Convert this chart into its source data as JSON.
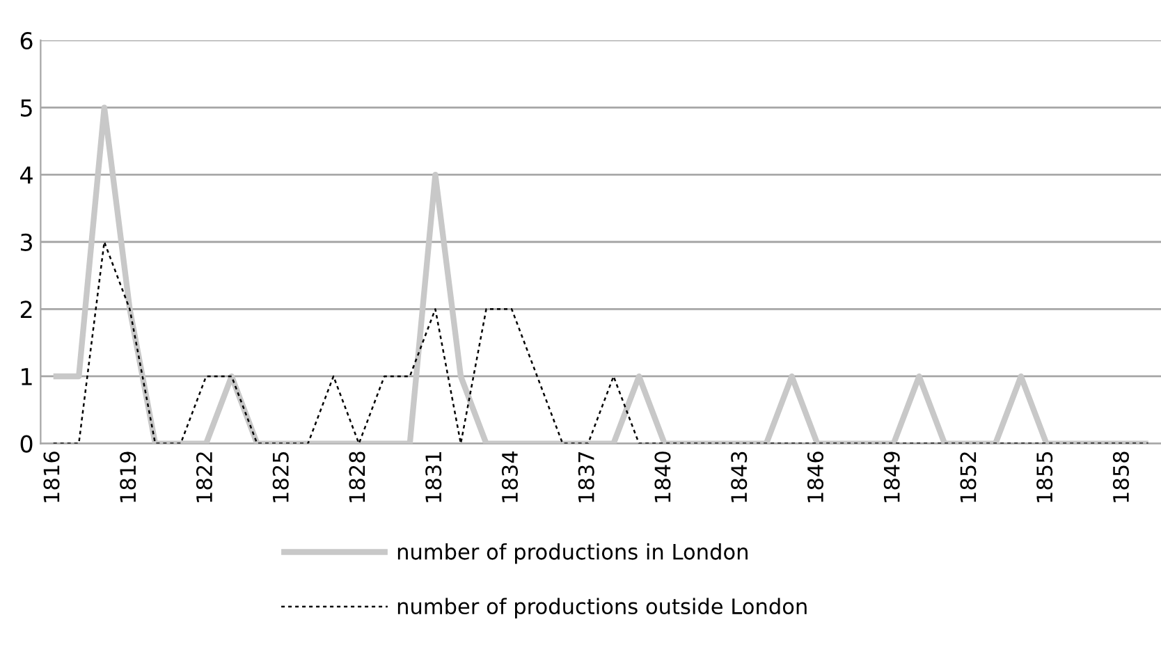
{
  "chart_data": {
    "type": "line",
    "categories": [
      "1816",
      null,
      null,
      "1819",
      null,
      null,
      "1822",
      null,
      null,
      "1825",
      null,
      null,
      "1828",
      null,
      null,
      "1831",
      null,
      null,
      "1834",
      null,
      null,
      "1837",
      null,
      null,
      "1840",
      null,
      null,
      "1843",
      null,
      null,
      "1846",
      null,
      null,
      "1849",
      null,
      null,
      "1852",
      null,
      null,
      "1855",
      null,
      null,
      "1858",
      null
    ],
    "series": [
      {
        "name": "number of productions in London",
        "color": "#c8c8c8",
        "line_style": "solid",
        "values": [
          1,
          1,
          5,
          2,
          0,
          0,
          0,
          1,
          0,
          0,
          0,
          0,
          0,
          0,
          0,
          4,
          1,
          0,
          0,
          0,
          0,
          0,
          0,
          1,
          0,
          0,
          0,
          0,
          0,
          1,
          0,
          0,
          0,
          0,
          1,
          0,
          0,
          0,
          1,
          0,
          0,
          0,
          0,
          0
        ]
      },
      {
        "name": "number of productions outside London",
        "color": "#000000",
        "line_style": "dashed",
        "values": [
          0,
          0,
          3,
          2,
          0,
          0,
          1,
          1,
          0,
          0,
          0,
          1,
          0,
          1,
          1,
          2,
          0,
          2,
          2,
          1,
          0,
          0,
          1,
          0,
          0,
          0,
          0,
          0,
          0,
          0,
          0,
          0,
          0,
          0,
          0,
          0,
          0,
          0,
          0,
          0,
          0,
          0,
          0,
          0
        ]
      }
    ],
    "ylim": [
      0,
      6
    ],
    "yticks": [
      0,
      1,
      2,
      3,
      4,
      5,
      6
    ],
    "grid": "y",
    "legend": "bottom",
    "marker": "none"
  }
}
